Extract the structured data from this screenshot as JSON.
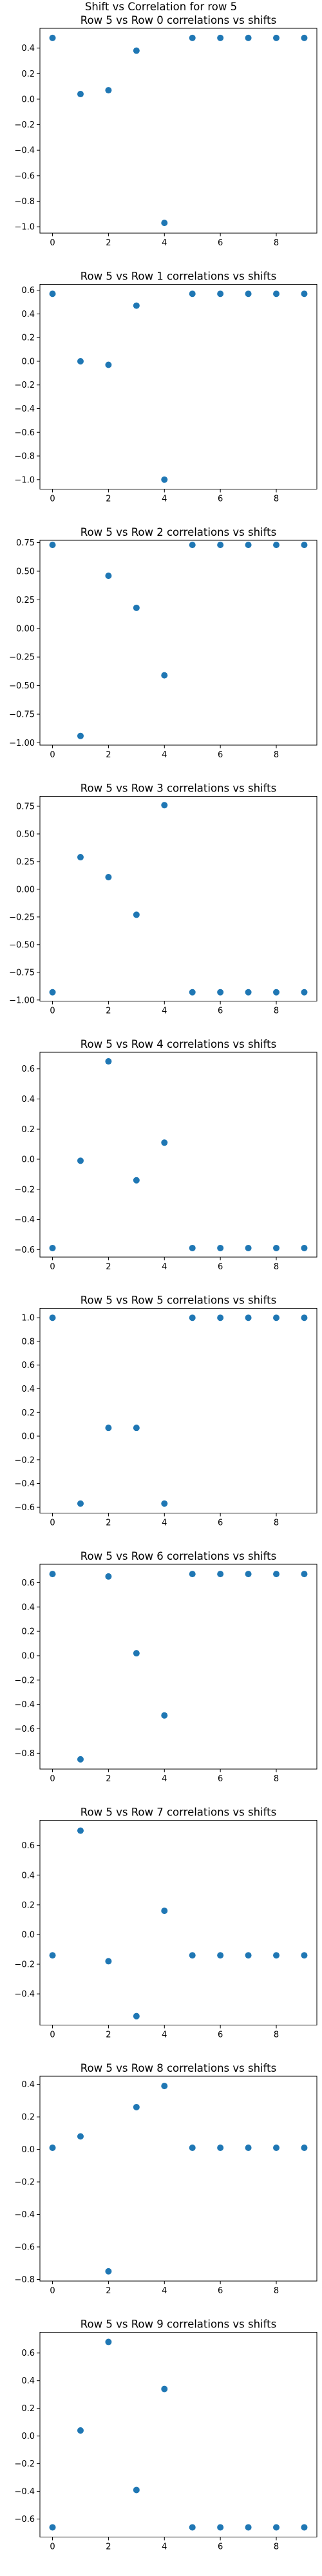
{
  "figure_title": "Shift vs Correlation for row 5",
  "chart_data": [
    {
      "type": "scatter",
      "title": "Row 5 vs Row 0 correlations vs shifts",
      "x": [
        0,
        1,
        2,
        3,
        4,
        5,
        6,
        7,
        8,
        9
      ],
      "y": [
        0.48,
        0.04,
        0.07,
        0.38,
        -0.97,
        0.48,
        0.48,
        0.48,
        0.48,
        0.48
      ],
      "xlim": [
        -0.45,
        9.45
      ],
      "ylim": [
        -1.05,
        0.555
      ],
      "x_ticks": [
        0,
        2,
        4,
        6,
        8
      ],
      "y_ticks": [
        -1.0,
        -0.8,
        -0.6,
        -0.4,
        -0.2,
        0.0,
        0.2,
        0.4
      ],
      "y_tick_labels": [
        "−1.0",
        "−0.8",
        "−0.6",
        "−0.4",
        "−0.2",
        "0.0",
        "0.2",
        "0.4"
      ],
      "color": "#1f77b4",
      "grid": false
    },
    {
      "type": "scatter",
      "title": "Row 5 vs Row 1 correlations vs shifts",
      "x": [
        0,
        1,
        2,
        3,
        4,
        5,
        6,
        7,
        8,
        9
      ],
      "y": [
        0.57,
        0.0,
        -0.03,
        0.47,
        -1.0,
        0.57,
        0.57,
        0.57,
        0.57,
        0.57
      ],
      "xlim": [
        -0.45,
        9.45
      ],
      "ylim": [
        -1.08,
        0.65
      ],
      "x_ticks": [
        0,
        2,
        4,
        6,
        8
      ],
      "y_ticks": [
        -1.0,
        -0.8,
        -0.6,
        -0.4,
        -0.2,
        0.0,
        0.2,
        0.4,
        0.6
      ],
      "y_tick_labels": [
        "−1.0",
        "−0.8",
        "−0.6",
        "−0.4",
        "−0.2",
        "0.0",
        "0.2",
        "0.4",
        "0.6"
      ],
      "color": "#1f77b4",
      "grid": false
    },
    {
      "type": "scatter",
      "title": "Row 5 vs Row 2 correlations vs shifts",
      "x": [
        0,
        1,
        2,
        3,
        4,
        5,
        6,
        7,
        8,
        9
      ],
      "y": [
        0.73,
        -0.94,
        0.46,
        0.18,
        -0.41,
        0.73,
        0.73,
        0.73,
        0.73,
        0.73
      ],
      "xlim": [
        -0.45,
        9.45
      ],
      "ylim": [
        -1.02,
        0.77
      ],
      "x_ticks": [
        0,
        2,
        4,
        6,
        8
      ],
      "y_ticks": [
        -1.0,
        -0.75,
        -0.5,
        -0.25,
        0.0,
        0.25,
        0.5,
        0.75
      ],
      "y_tick_labels": [
        "−1.00",
        "−0.75",
        "−0.50",
        "−0.25",
        "0.00",
        "0.25",
        "0.50",
        "0.75"
      ],
      "color": "#1f77b4",
      "grid": false
    },
    {
      "type": "scatter",
      "title": "Row 5 vs Row 3 correlations vs shifts",
      "x": [
        0,
        1,
        2,
        3,
        4,
        5,
        6,
        7,
        8,
        9
      ],
      "y": [
        -0.93,
        0.29,
        0.11,
        -0.23,
        0.76,
        -0.93,
        -0.93,
        -0.93,
        -0.93,
        -0.93
      ],
      "xlim": [
        -0.45,
        9.45
      ],
      "ylim": [
        -1.01,
        0.84
      ],
      "x_ticks": [
        0,
        2,
        4,
        6,
        8
      ],
      "y_ticks": [
        -1.0,
        -0.75,
        -0.5,
        -0.25,
        0.0,
        0.25,
        0.5,
        0.75
      ],
      "y_tick_labels": [
        "−1.00",
        "−0.75",
        "−0.50",
        "−0.25",
        "0.00",
        "0.25",
        "0.50",
        "0.75"
      ],
      "color": "#1f77b4",
      "grid": false
    },
    {
      "type": "scatter",
      "title": "Row 5 vs Row 4 correlations vs shifts",
      "x": [
        0,
        1,
        2,
        3,
        4,
        5,
        6,
        7,
        8,
        9
      ],
      "y": [
        -0.59,
        -0.01,
        0.65,
        -0.14,
        0.11,
        -0.59,
        -0.59,
        -0.59,
        -0.59,
        -0.59
      ],
      "xlim": [
        -0.45,
        9.45
      ],
      "ylim": [
        -0.65,
        0.71
      ],
      "x_ticks": [
        0,
        2,
        4,
        6,
        8
      ],
      "y_ticks": [
        -0.6,
        -0.4,
        -0.2,
        0.0,
        0.2,
        0.4,
        0.6
      ],
      "y_tick_labels": [
        "−0.6",
        "−0.4",
        "−0.2",
        "0.0",
        "0.2",
        "0.4",
        "0.6"
      ],
      "color": "#1f77b4",
      "grid": false
    },
    {
      "type": "scatter",
      "title": "Row 5 vs Row 5 correlations vs shifts",
      "x": [
        0,
        1,
        2,
        3,
        4,
        5,
        6,
        7,
        8,
        9
      ],
      "y": [
        1.0,
        -0.57,
        0.07,
        0.07,
        -0.57,
        1.0,
        1.0,
        1.0,
        1.0,
        1.0
      ],
      "xlim": [
        -0.45,
        9.45
      ],
      "ylim": [
        -0.65,
        1.08
      ],
      "x_ticks": [
        0,
        2,
        4,
        6,
        8
      ],
      "y_ticks": [
        -0.6,
        -0.4,
        -0.2,
        0.0,
        0.2,
        0.4,
        0.6,
        0.8,
        1.0
      ],
      "y_tick_labels": [
        "−0.6",
        "−0.4",
        "−0.2",
        "0.0",
        "0.2",
        "0.4",
        "0.6",
        "0.8",
        "1.0"
      ],
      "color": "#1f77b4",
      "grid": false
    },
    {
      "type": "scatter",
      "title": "Row 5 vs Row 6 correlations vs shifts",
      "x": [
        0,
        1,
        2,
        3,
        4,
        5,
        6,
        7,
        8,
        9
      ],
      "y": [
        0.67,
        -0.85,
        0.65,
        0.02,
        -0.49,
        0.67,
        0.67,
        0.67,
        0.67,
        0.67
      ],
      "xlim": [
        -0.45,
        9.45
      ],
      "ylim": [
        -0.93,
        0.75
      ],
      "x_ticks": [
        0,
        2,
        4,
        6,
        8
      ],
      "y_ticks": [
        -0.8,
        -0.6,
        -0.4,
        -0.2,
        0.0,
        0.2,
        0.4,
        0.6
      ],
      "y_tick_labels": [
        "−0.8",
        "−0.6",
        "−0.4",
        "−0.2",
        "0.0",
        "0.2",
        "0.4",
        "0.6"
      ],
      "color": "#1f77b4",
      "grid": false
    },
    {
      "type": "scatter",
      "title": "Row 5 vs Row 7 correlations vs shifts",
      "x": [
        0,
        1,
        2,
        3,
        4,
        5,
        6,
        7,
        8,
        9
      ],
      "y": [
        -0.14,
        0.7,
        -0.18,
        -0.55,
        0.16,
        -0.14,
        -0.14,
        -0.14,
        -0.14,
        -0.14
      ],
      "xlim": [
        -0.45,
        9.45
      ],
      "ylim": [
        -0.61,
        0.77
      ],
      "x_ticks": [
        0,
        2,
        4,
        6,
        8
      ],
      "y_ticks": [
        -0.4,
        -0.2,
        0.0,
        0.2,
        0.4,
        0.6
      ],
      "y_tick_labels": [
        "−0.4",
        "−0.2",
        "0.0",
        "0.2",
        "0.4",
        "0.6"
      ],
      "color": "#1f77b4",
      "grid": false
    },
    {
      "type": "scatter",
      "title": "Row 5 vs Row 8 correlations vs shifts",
      "x": [
        0,
        1,
        2,
        3,
        4,
        5,
        6,
        7,
        8,
        9
      ],
      "y": [
        0.01,
        0.08,
        -0.75,
        0.26,
        0.39,
        0.01,
        0.01,
        0.01,
        0.01,
        0.01
      ],
      "xlim": [
        -0.45,
        9.45
      ],
      "ylim": [
        -0.81,
        0.45
      ],
      "x_ticks": [
        0,
        2,
        4,
        6,
        8
      ],
      "y_ticks": [
        -0.8,
        -0.6,
        -0.4,
        -0.2,
        0.0,
        0.2,
        0.4
      ],
      "y_tick_labels": [
        "−0.8",
        "−0.6",
        "−0.4",
        "−0.2",
        "0.0",
        "0.2",
        "0.4"
      ],
      "color": "#1f77b4",
      "grid": false
    },
    {
      "type": "scatter",
      "title": "Row 5 vs Row 9 correlations vs shifts",
      "x": [
        0,
        1,
        2,
        3,
        4,
        5,
        6,
        7,
        8,
        9
      ],
      "y": [
        -0.66,
        0.04,
        0.68,
        -0.39,
        0.34,
        -0.66,
        -0.66,
        -0.66,
        -0.66,
        -0.66
      ],
      "xlim": [
        -0.45,
        9.45
      ],
      "ylim": [
        -0.73,
        0.75
      ],
      "x_ticks": [
        0,
        2,
        4,
        6,
        8
      ],
      "y_ticks": [
        -0.6,
        -0.4,
        -0.2,
        0.0,
        0.2,
        0.4,
        0.6
      ],
      "y_tick_labels": [
        "−0.6",
        "−0.4",
        "−0.2",
        "0.0",
        "0.2",
        "0.4",
        "0.6"
      ],
      "color": "#1f77b4",
      "grid": false
    }
  ]
}
